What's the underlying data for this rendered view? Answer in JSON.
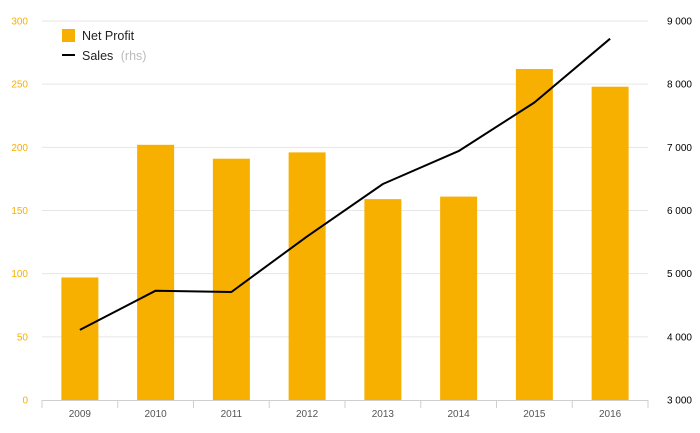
{
  "colors": {
    "bar": "#f8b000",
    "line": "#000000",
    "left_axis_text": "#f8b000",
    "right_axis_text": "#000000",
    "x_axis_text": "#555555",
    "grid": "#e6e6e6",
    "axis_line": "#cfcfcf",
    "legend_muted": "#bbbbbb"
  },
  "legend": {
    "bar_label": "Net Profit",
    "line_label": "Sales",
    "line_suffix": "(rhs)",
    "bar_icon": "square-swatch-icon",
    "line_icon": "line-swatch-icon"
  },
  "chart_data": {
    "type": "bar+line",
    "categories": [
      "2009",
      "2010",
      "2011",
      "2012",
      "2013",
      "2014",
      "2015",
      "2016"
    ],
    "series": [
      {
        "name": "Net Profit",
        "type": "bar",
        "axis": "left",
        "values": [
          97,
          202,
          191,
          196,
          159,
          161,
          262,
          248
        ]
      },
      {
        "name": "Sales",
        "type": "line",
        "axis": "right",
        "values": [
          4110,
          4730,
          4710,
          5590,
          6420,
          6940,
          7710,
          8720
        ]
      }
    ],
    "left_axis": {
      "min": 0,
      "max": 300,
      "ticks": [
        "0",
        "50",
        "100",
        "150",
        "200",
        "250",
        "300"
      ]
    },
    "right_axis": {
      "min": 3000,
      "max": 9000,
      "ticks": [
        "3 000",
        "4 000",
        "5 000",
        "6 000",
        "7 000",
        "8 000",
        "9 000"
      ]
    },
    "grid": true,
    "legend_position": "top-left"
  }
}
